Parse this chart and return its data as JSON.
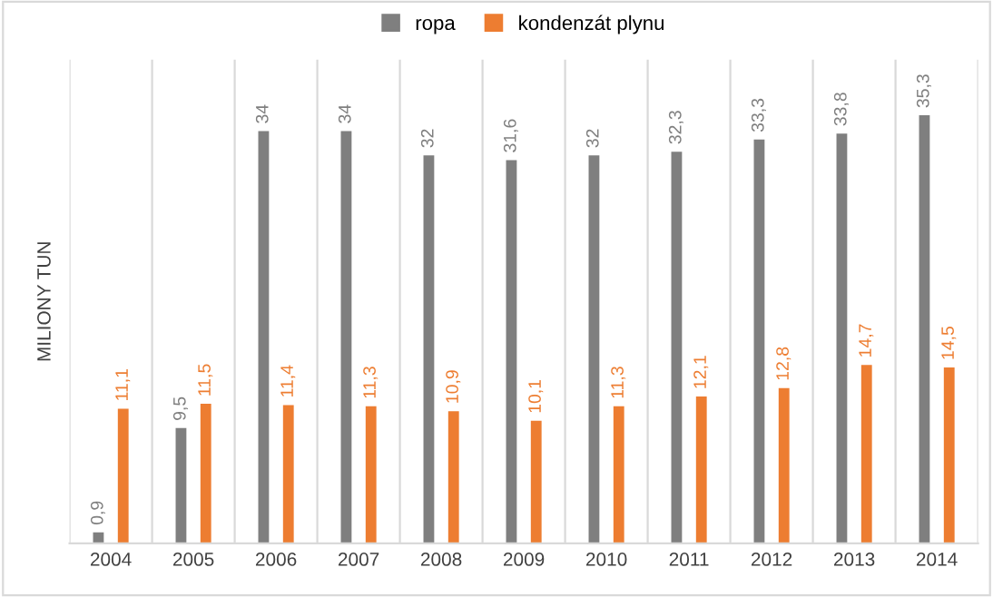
{
  "chart_data": {
    "type": "bar",
    "ylabel": "MILIONY TUN",
    "categories": [
      "2004",
      "2005",
      "2006",
      "2007",
      "2008",
      "2009",
      "2010",
      "2011",
      "2012",
      "2013",
      "2014"
    ],
    "series": [
      {
        "name": "ropa",
        "color": "#7f7f7f",
        "values": [
          0.9,
          9.5,
          34,
          34,
          32,
          31.6,
          32,
          32.3,
          33.3,
          33.8,
          35.3
        ],
        "value_labels": [
          "0,9",
          "9,5",
          "34",
          "34",
          "32",
          "31,6",
          "32",
          "32,3",
          "33,3",
          "33,8",
          "35,3"
        ]
      },
      {
        "name": "kondenzát plynu",
        "color": "#ed7d31",
        "values": [
          11.1,
          11.5,
          11.4,
          11.3,
          10.9,
          10.1,
          11.3,
          12.1,
          12.8,
          14.7,
          14.5
        ],
        "value_labels": [
          "11,1",
          "11,5",
          "11,4",
          "11,3",
          "10,9",
          "10,1",
          "11,3",
          "12,1",
          "12,8",
          "14,7",
          "14,5"
        ]
      }
    ],
    "grid": "x",
    "legend": "top",
    "tick_labels": "x"
  }
}
